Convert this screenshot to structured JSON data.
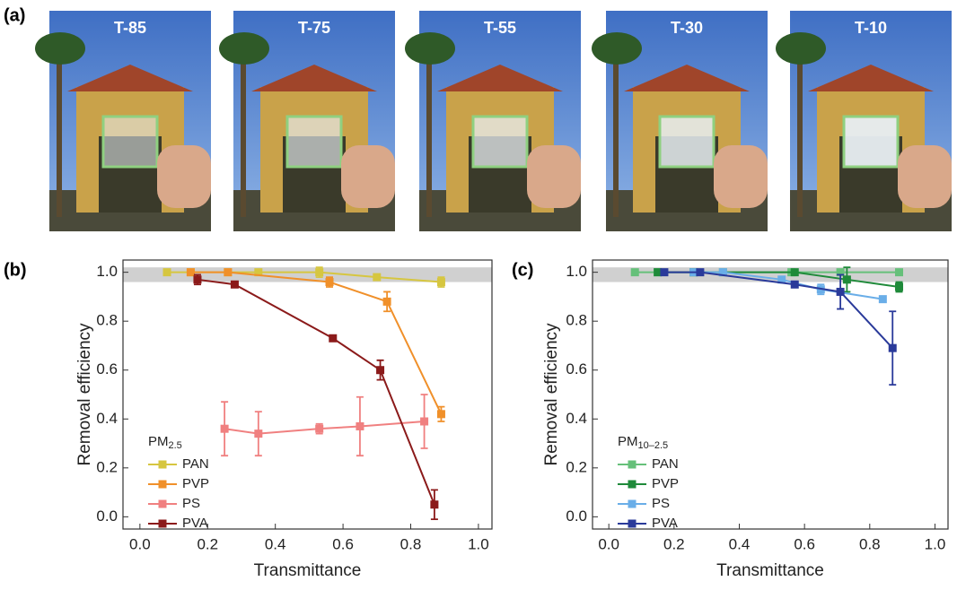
{
  "panel_labels": [
    "(a)",
    "(b)",
    "(c)"
  ],
  "photos": [
    "T-85",
    "T-75",
    "T-55",
    "T-30",
    "T-10"
  ],
  "chart_data": [
    {
      "type": "line",
      "xlabel": "Transmittance",
      "ylabel": "Removal efficiency",
      "xlim": [
        -0.05,
        1.04
      ],
      "ylim": [
        -0.05,
        1.05
      ],
      "xticks": [
        {
          "value": 0,
          "label": "0.0"
        },
        0.2,
        0.4,
        0.6,
        0.8,
        {
          "value": 1,
          "label": "1.0"
        }
      ],
      "yticks": [
        {
          "value": 0,
          "label": "0.0"
        },
        0.2,
        0.4,
        0.6,
        0.8,
        {
          "value": 1,
          "label": "1.0"
        }
      ],
      "band": [
        0.96,
        1.02
      ],
      "band_color": "#d0d0d0",
      "legend_title": "PM",
      "legend_title_sub": "2.5",
      "legend": "lower left",
      "series": [
        {
          "name": "PAN",
          "color": "#d6c640",
          "x": [
            0.08,
            0.15,
            0.26,
            0.35,
            0.53,
            0.7,
            0.89
          ],
          "values": [
            1.0,
            1.0,
            1.0,
            1.0,
            1.0,
            0.98,
            0.96
          ],
          "errors": [
            0,
            0,
            0,
            0,
            0.02,
            0,
            0.02
          ]
        },
        {
          "name": "PVP",
          "color": "#f0902a",
          "x": [
            0.15,
            0.26,
            0.56,
            0.73,
            0.89
          ],
          "values": [
            1.0,
            1.0,
            0.96,
            0.88,
            0.42
          ],
          "errors": [
            0,
            0,
            0.02,
            0.04,
            0.03
          ]
        },
        {
          "name": "PS",
          "color": "#f08080",
          "x": [
            0.25,
            0.35,
            0.53,
            0.65,
            0.84
          ],
          "values": [
            0.36,
            0.34,
            0.36,
            0.37,
            0.39
          ],
          "errors": [
            0.11,
            0.09,
            0.02,
            0.12,
            0.11
          ]
        },
        {
          "name": "PVA",
          "color": "#8b1a1a",
          "x": [
            0.17,
            0.28,
            0.57,
            0.71,
            0.87
          ],
          "values": [
            0.97,
            0.95,
            0.73,
            0.6,
            0.05
          ],
          "errors": [
            0.02,
            0,
            0.01,
            0.04,
            0.06
          ]
        }
      ]
    },
    {
      "type": "line",
      "xlabel": "Transmittance",
      "ylabel": "Removal efficiency",
      "xlim": [
        -0.05,
        1.04
      ],
      "ylim": [
        -0.05,
        1.05
      ],
      "xticks": [
        {
          "value": 0,
          "label": "0.0"
        },
        0.2,
        0.4,
        0.6,
        0.8,
        {
          "value": 1,
          "label": "1.0"
        }
      ],
      "yticks": [
        {
          "value": 0,
          "label": "0.0"
        },
        0.2,
        0.4,
        0.6,
        0.8,
        {
          "value": 1,
          "label": "1.0"
        }
      ],
      "band": [
        0.96,
        1.02
      ],
      "band_color": "#d0d0d0",
      "legend_title": "PM",
      "legend_title_sub": "10–2.5",
      "legend": "lower left",
      "series": [
        {
          "name": "PAN",
          "color": "#66c07a",
          "x": [
            0.08,
            0.15,
            0.26,
            0.35,
            0.56,
            0.71,
            0.89
          ],
          "values": [
            1.0,
            1.0,
            1.0,
            1.0,
            1.0,
            1.0,
            1.0
          ],
          "errors": [
            0,
            0,
            0,
            0,
            0,
            0,
            0
          ]
        },
        {
          "name": "PVP",
          "color": "#1f8a3a",
          "x": [
            0.15,
            0.26,
            0.57,
            0.73,
            0.89
          ],
          "values": [
            1.0,
            1.0,
            1.0,
            0.97,
            0.94
          ],
          "errors": [
            0,
            0,
            0,
            0.05,
            0.02
          ]
        },
        {
          "name": "PS",
          "color": "#6aaee8",
          "x": [
            0.26,
            0.35,
            0.53,
            0.65,
            0.84
          ],
          "values": [
            1.0,
            1.0,
            0.97,
            0.93,
            0.89
          ],
          "errors": [
            0,
            0,
            0.01,
            0.02,
            0.01
          ]
        },
        {
          "name": "PVA",
          "color": "#2a3a9a",
          "x": [
            0.17,
            0.28,
            0.57,
            0.71,
            0.87
          ],
          "values": [
            1.0,
            1.0,
            0.95,
            0.92,
            0.69
          ],
          "errors": [
            0,
            0,
            0.01,
            0.07,
            0.15
          ]
        }
      ]
    }
  ]
}
